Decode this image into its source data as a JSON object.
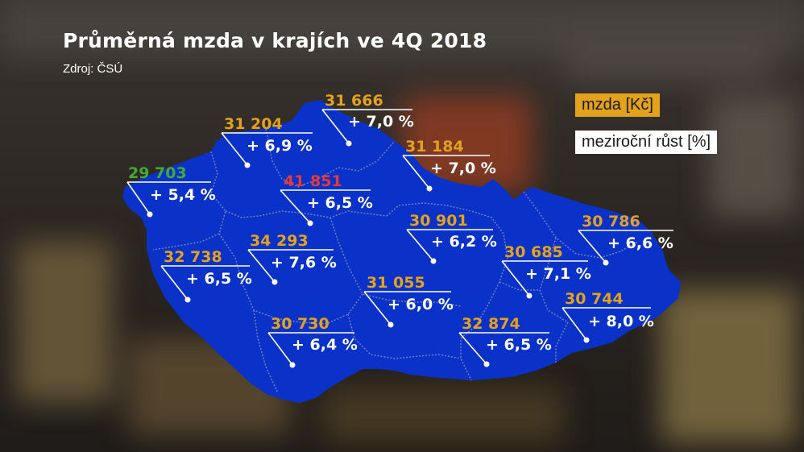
{
  "title": "Průměrná mzda v krajích ve 4Q 2018",
  "source": "Zdroj: ČSÚ",
  "legend": {
    "salary": "mzda [Kč]",
    "growth": "meziroční růst [%]"
  },
  "colors": {
    "map_fill": "#0a32c8",
    "border": "#6f7fbf",
    "salary_default": "#e3a21c",
    "salary_highest": "#e5393a",
    "salary_lowest": "#43a935",
    "growth_text": "#ffffff",
    "legend_salary_bg": "#e3a21c",
    "legend_growth_bg": "#ffffff"
  },
  "regions": [
    {
      "salary": "31 666",
      "growth": "+ 7,0 %",
      "rank": "default"
    },
    {
      "salary": "31 204",
      "growth": "+ 6,9 %",
      "rank": "default"
    },
    {
      "salary": "31 184",
      "growth": "+ 7,0 %",
      "rank": "default"
    },
    {
      "salary": "29 703",
      "growth": "+ 5,4 %",
      "rank": "lowest"
    },
    {
      "salary": "41 851",
      "growth": "+ 6,5 %",
      "rank": "highest"
    },
    {
      "salary": "30 901",
      "growth": "+ 6,2 %",
      "rank": "default"
    },
    {
      "salary": "30 786",
      "growth": "+ 6,6 %",
      "rank": "default"
    },
    {
      "salary": "34 293",
      "growth": "+ 7,6 %",
      "rank": "default"
    },
    {
      "salary": "32 738",
      "growth": "+ 6,5 %",
      "rank": "default"
    },
    {
      "salary": "30 685",
      "growth": "+ 7,1 %",
      "rank": "default"
    },
    {
      "salary": "31 055",
      "growth": "+ 6,0 %",
      "rank": "default"
    },
    {
      "salary": "30 744",
      "growth": "+ 8,0 %",
      "rank": "default"
    },
    {
      "salary": "30 730",
      "growth": "+ 6,4 %",
      "rank": "default"
    },
    {
      "salary": "32 874",
      "growth": "+ 6,5 %",
      "rank": "default"
    }
  ]
}
